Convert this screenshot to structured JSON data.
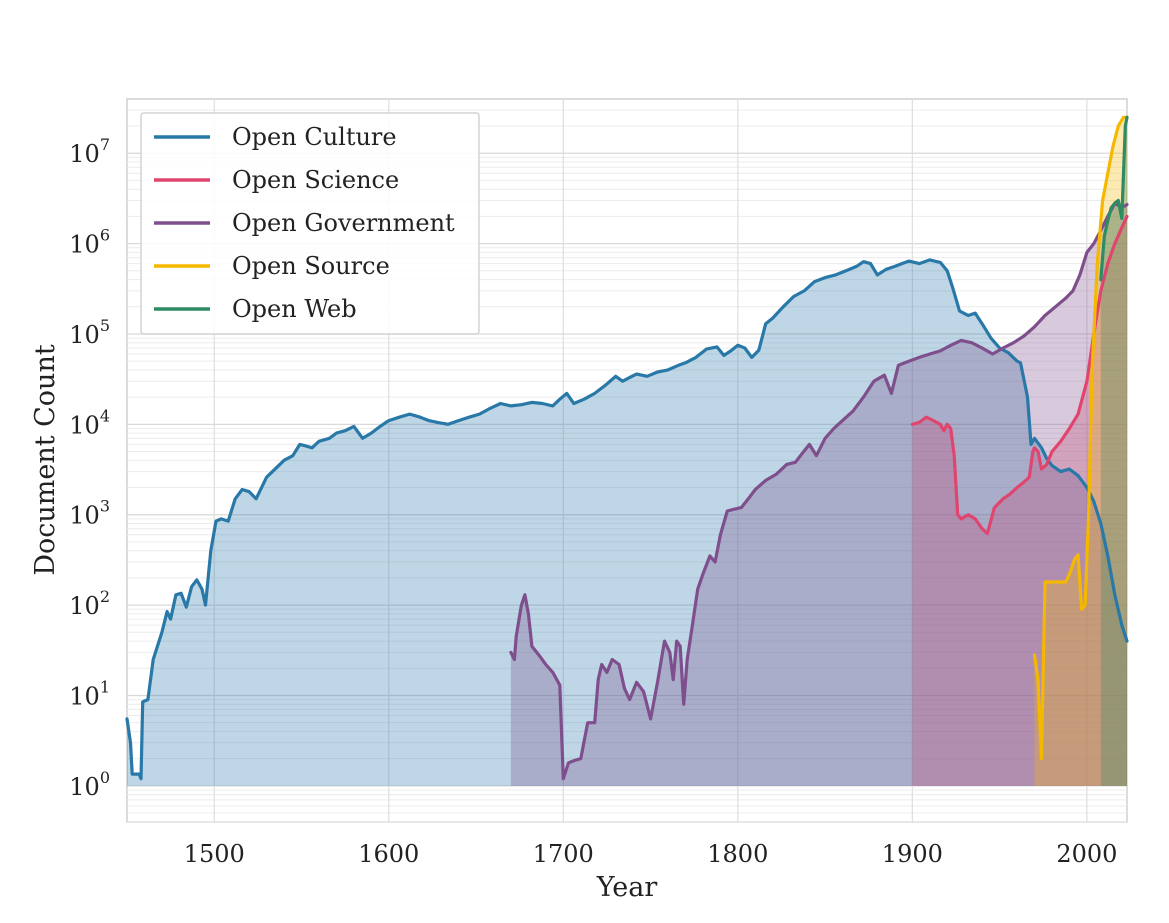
{
  "chart_data": {
    "type": "area",
    "title": "",
    "xlabel": "Year",
    "ylabel": "Document Count",
    "xlim": [
      1450,
      2023
    ],
    "ylim_log10": [
      -0.4,
      7.6
    ],
    "yscale": "log",
    "grid": true,
    "legend_position": "top-left",
    "x_ticks": [
      {
        "value": 1500,
        "label": "1500"
      },
      {
        "value": 1600,
        "label": "1600"
      },
      {
        "value": 1700,
        "label": "1700"
      },
      {
        "value": 1800,
        "label": "1800"
      },
      {
        "value": 1900,
        "label": "1900"
      },
      {
        "value": 2000,
        "label": "2000"
      }
    ],
    "y_ticks": [
      {
        "exp": 0,
        "base": "10",
        "sup": "0"
      },
      {
        "exp": 1,
        "base": "10",
        "sup": "1"
      },
      {
        "exp": 2,
        "base": "10",
        "sup": "2"
      },
      {
        "exp": 3,
        "base": "10",
        "sup": "3"
      },
      {
        "exp": 4,
        "base": "10",
        "sup": "4"
      },
      {
        "exp": 5,
        "base": "10",
        "sup": "5"
      },
      {
        "exp": 6,
        "base": "10",
        "sup": "6"
      },
      {
        "exp": 7,
        "base": "10",
        "sup": "7"
      }
    ],
    "series": [
      {
        "name": "Open Culture",
        "color": "#2878a8",
        "points": [
          [
            1450,
            5.5
          ],
          [
            1452,
            3
          ],
          [
            1453,
            1.35
          ],
          [
            1457,
            1.35
          ],
          [
            1458,
            1.2
          ],
          [
            1459,
            8.5
          ],
          [
            1462,
            9
          ],
          [
            1465,
            25
          ],
          [
            1470,
            50
          ],
          [
            1473,
            85
          ],
          [
            1475,
            70
          ],
          [
            1478,
            130
          ],
          [
            1481,
            135
          ],
          [
            1484,
            95
          ],
          [
            1487,
            160
          ],
          [
            1490,
            190
          ],
          [
            1493,
            150
          ],
          [
            1495,
            100
          ],
          [
            1498,
            400
          ],
          [
            1501,
            850
          ],
          [
            1504,
            900
          ],
          [
            1508,
            850
          ],
          [
            1512,
            1500
          ],
          [
            1516,
            1900
          ],
          [
            1520,
            1800
          ],
          [
            1524,
            1500
          ],
          [
            1530,
            2600
          ],
          [
            1540,
            4000
          ],
          [
            1545,
            4500
          ],
          [
            1549,
            6000
          ],
          [
            1552,
            5800
          ],
          [
            1556,
            5500
          ],
          [
            1560,
            6500
          ],
          [
            1566,
            7000
          ],
          [
            1570,
            8000
          ],
          [
            1575,
            8500
          ],
          [
            1580,
            9500
          ],
          [
            1585,
            7000
          ],
          [
            1590,
            8000
          ],
          [
            1595,
            9500
          ],
          [
            1600,
            11000
          ],
          [
            1606,
            12000
          ],
          [
            1612,
            13000
          ],
          [
            1618,
            12000
          ],
          [
            1623,
            11000
          ],
          [
            1628,
            10500
          ],
          [
            1634,
            10000
          ],
          [
            1640,
            11000
          ],
          [
            1646,
            12000
          ],
          [
            1652,
            13000
          ],
          [
            1658,
            15000
          ],
          [
            1664,
            17000
          ],
          [
            1670,
            16000
          ],
          [
            1676,
            16500
          ],
          [
            1682,
            17500
          ],
          [
            1688,
            17000
          ],
          [
            1694,
            16000
          ],
          [
            1698,
            19000
          ],
          [
            1702,
            22000
          ],
          [
            1706,
            17000
          ],
          [
            1712,
            19000
          ],
          [
            1718,
            22000
          ],
          [
            1724,
            27000
          ],
          [
            1730,
            34000
          ],
          [
            1734,
            30000
          ],
          [
            1738,
            33000
          ],
          [
            1742,
            36000
          ],
          [
            1748,
            34000
          ],
          [
            1754,
            38000
          ],
          [
            1760,
            40000
          ],
          [
            1766,
            45000
          ],
          [
            1770,
            48000
          ],
          [
            1776,
            55000
          ],
          [
            1782,
            68000
          ],
          [
            1788,
            72000
          ],
          [
            1792,
            58000
          ],
          [
            1796,
            65000
          ],
          [
            1800,
            75000
          ],
          [
            1804,
            70000
          ],
          [
            1808,
            55000
          ],
          [
            1812,
            66000
          ],
          [
            1816,
            130000
          ],
          [
            1820,
            150000
          ],
          [
            1826,
            200000
          ],
          [
            1832,
            260000
          ],
          [
            1838,
            300000
          ],
          [
            1844,
            380000
          ],
          [
            1850,
            420000
          ],
          [
            1856,
            450000
          ],
          [
            1862,
            500000
          ],
          [
            1868,
            560000
          ],
          [
            1872,
            630000
          ],
          [
            1876,
            600000
          ],
          [
            1880,
            450000
          ],
          [
            1885,
            520000
          ],
          [
            1890,
            560000
          ],
          [
            1894,
            600000
          ],
          [
            1898,
            640000
          ],
          [
            1904,
            600000
          ],
          [
            1910,
            660000
          ],
          [
            1916,
            620000
          ],
          [
            1920,
            500000
          ],
          [
            1923,
            330000
          ],
          [
            1927,
            180000
          ],
          [
            1932,
            160000
          ],
          [
            1936,
            170000
          ],
          [
            1940,
            130000
          ],
          [
            1945,
            90000
          ],
          [
            1950,
            70000
          ],
          [
            1955,
            62000
          ],
          [
            1960,
            50000
          ],
          [
            1962,
            48000
          ],
          [
            1966,
            20000
          ],
          [
            1968,
            6000
          ],
          [
            1970,
            7000
          ],
          [
            1974,
            5500
          ],
          [
            1977,
            4200
          ],
          [
            1980,
            3500
          ],
          [
            1985,
            3000
          ],
          [
            1990,
            3200
          ],
          [
            1995,
            2700
          ],
          [
            2000,
            2000
          ],
          [
            2004,
            1400
          ],
          [
            2008,
            800
          ],
          [
            2012,
            350
          ],
          [
            2016,
            130
          ],
          [
            2020,
            60
          ],
          [
            2023,
            40
          ]
        ]
      },
      {
        "name": "Open Science",
        "color": "#e0456e",
        "points": [
          [
            1900,
            10000
          ],
          [
            1904,
            10500
          ],
          [
            1908,
            12000
          ],
          [
            1912,
            11000
          ],
          [
            1916,
            10000
          ],
          [
            1918,
            8500
          ],
          [
            1920,
            10000
          ],
          [
            1922,
            9000
          ],
          [
            1924,
            4500
          ],
          [
            1926,
            1000
          ],
          [
            1928,
            900
          ],
          [
            1932,
            1000
          ],
          [
            1936,
            900
          ],
          [
            1940,
            700
          ],
          [
            1943,
            620
          ],
          [
            1947,
            1200
          ],
          [
            1952,
            1500
          ],
          [
            1956,
            1700
          ],
          [
            1960,
            2000
          ],
          [
            1964,
            2300
          ],
          [
            1967,
            2600
          ],
          [
            1969,
            5000
          ],
          [
            1970,
            5500
          ],
          [
            1972,
            5000
          ],
          [
            1974,
            3200
          ],
          [
            1977,
            3600
          ],
          [
            1980,
            5000
          ],
          [
            1985,
            6500
          ],
          [
            1990,
            9000
          ],
          [
            1995,
            13000
          ],
          [
            2000,
            30000
          ],
          [
            2004,
            100000
          ],
          [
            2008,
            300000
          ],
          [
            2012,
            600000
          ],
          [
            2016,
            1000000
          ],
          [
            2020,
            1500000
          ],
          [
            2023,
            2000000
          ]
        ]
      },
      {
        "name": "Open Government",
        "color": "#7e4f8c",
        "points": [
          [
            1670,
            30
          ],
          [
            1672,
            25
          ],
          [
            1673,
            45
          ],
          [
            1676,
            100
          ],
          [
            1678,
            130
          ],
          [
            1680,
            80
          ],
          [
            1682,
            35
          ],
          [
            1686,
            28
          ],
          [
            1690,
            22
          ],
          [
            1694,
            18
          ],
          [
            1698,
            13
          ],
          [
            1700,
            1.2
          ],
          [
            1703,
            1.8
          ],
          [
            1706,
            1.9
          ],
          [
            1710,
            2
          ],
          [
            1714,
            5
          ],
          [
            1718,
            5
          ],
          [
            1720,
            15
          ],
          [
            1722,
            22
          ],
          [
            1725,
            18
          ],
          [
            1728,
            25
          ],
          [
            1732,
            22
          ],
          [
            1735,
            12
          ],
          [
            1738,
            9
          ],
          [
            1742,
            14
          ],
          [
            1746,
            11
          ],
          [
            1750,
            5.5
          ],
          [
            1754,
            14
          ],
          [
            1758,
            40
          ],
          [
            1761,
            30
          ],
          [
            1763,
            15
          ],
          [
            1765,
            40
          ],
          [
            1767,
            35
          ],
          [
            1769,
            8
          ],
          [
            1771,
            25
          ],
          [
            1774,
            60
          ],
          [
            1777,
            150
          ],
          [
            1780,
            220
          ],
          [
            1784,
            350
          ],
          [
            1787,
            300
          ],
          [
            1790,
            600
          ],
          [
            1794,
            1100
          ],
          [
            1798,
            1150
          ],
          [
            1802,
            1200
          ],
          [
            1806,
            1500
          ],
          [
            1810,
            1900
          ],
          [
            1816,
            2400
          ],
          [
            1822,
            2800
          ],
          [
            1828,
            3600
          ],
          [
            1833,
            3800
          ],
          [
            1837,
            4800
          ],
          [
            1841,
            6000
          ],
          [
            1845,
            4500
          ],
          [
            1850,
            7000
          ],
          [
            1855,
            9000
          ],
          [
            1860,
            11000
          ],
          [
            1866,
            14000
          ],
          [
            1872,
            20000
          ],
          [
            1878,
            30000
          ],
          [
            1884,
            35000
          ],
          [
            1888,
            22000
          ],
          [
            1892,
            45000
          ],
          [
            1898,
            50000
          ],
          [
            1904,
            55000
          ],
          [
            1910,
            60000
          ],
          [
            1916,
            65000
          ],
          [
            1922,
            75000
          ],
          [
            1928,
            85000
          ],
          [
            1934,
            80000
          ],
          [
            1940,
            70000
          ],
          [
            1946,
            60000
          ],
          [
            1952,
            70000
          ],
          [
            1958,
            80000
          ],
          [
            1964,
            95000
          ],
          [
            1970,
            120000
          ],
          [
            1976,
            160000
          ],
          [
            1982,
            200000
          ],
          [
            1988,
            250000
          ],
          [
            1992,
            300000
          ],
          [
            1996,
            450000
          ],
          [
            2000,
            800000
          ],
          [
            2004,
            1000000
          ],
          [
            2008,
            1400000
          ],
          [
            2012,
            2000000
          ],
          [
            2016,
            2800000
          ],
          [
            2020,
            2500000
          ],
          [
            2023,
            2700000
          ]
        ]
      },
      {
        "name": "Open Source",
        "color": "#f5b800",
        "points": [
          [
            1970,
            28
          ],
          [
            1972,
            15
          ],
          [
            1974,
            2
          ],
          [
            1976,
            180
          ],
          [
            1980,
            180
          ],
          [
            1984,
            180
          ],
          [
            1988,
            180
          ],
          [
            1990,
            220
          ],
          [
            1993,
            320
          ],
          [
            1995,
            360
          ],
          [
            1997,
            90
          ],
          [
            1999,
            100
          ],
          [
            2001,
            1000
          ],
          [
            2003,
            40000
          ],
          [
            2006,
            600000
          ],
          [
            2009,
            3000000
          ],
          [
            2012,
            6000000
          ],
          [
            2015,
            12000000
          ],
          [
            2018,
            20000000
          ],
          [
            2021,
            25000000
          ],
          [
            2023,
            25000000
          ]
        ]
      },
      {
        "name": "Open Web",
        "color": "#2e8b63",
        "points": [
          [
            2008,
            400000
          ],
          [
            2010,
            1200000
          ],
          [
            2012,
            1800000
          ],
          [
            2014,
            2500000
          ],
          [
            2016,
            2800000
          ],
          [
            2018,
            3000000
          ],
          [
            2020,
            1900000
          ],
          [
            2022,
            20000000
          ],
          [
            2023,
            25000000
          ]
        ]
      }
    ]
  }
}
